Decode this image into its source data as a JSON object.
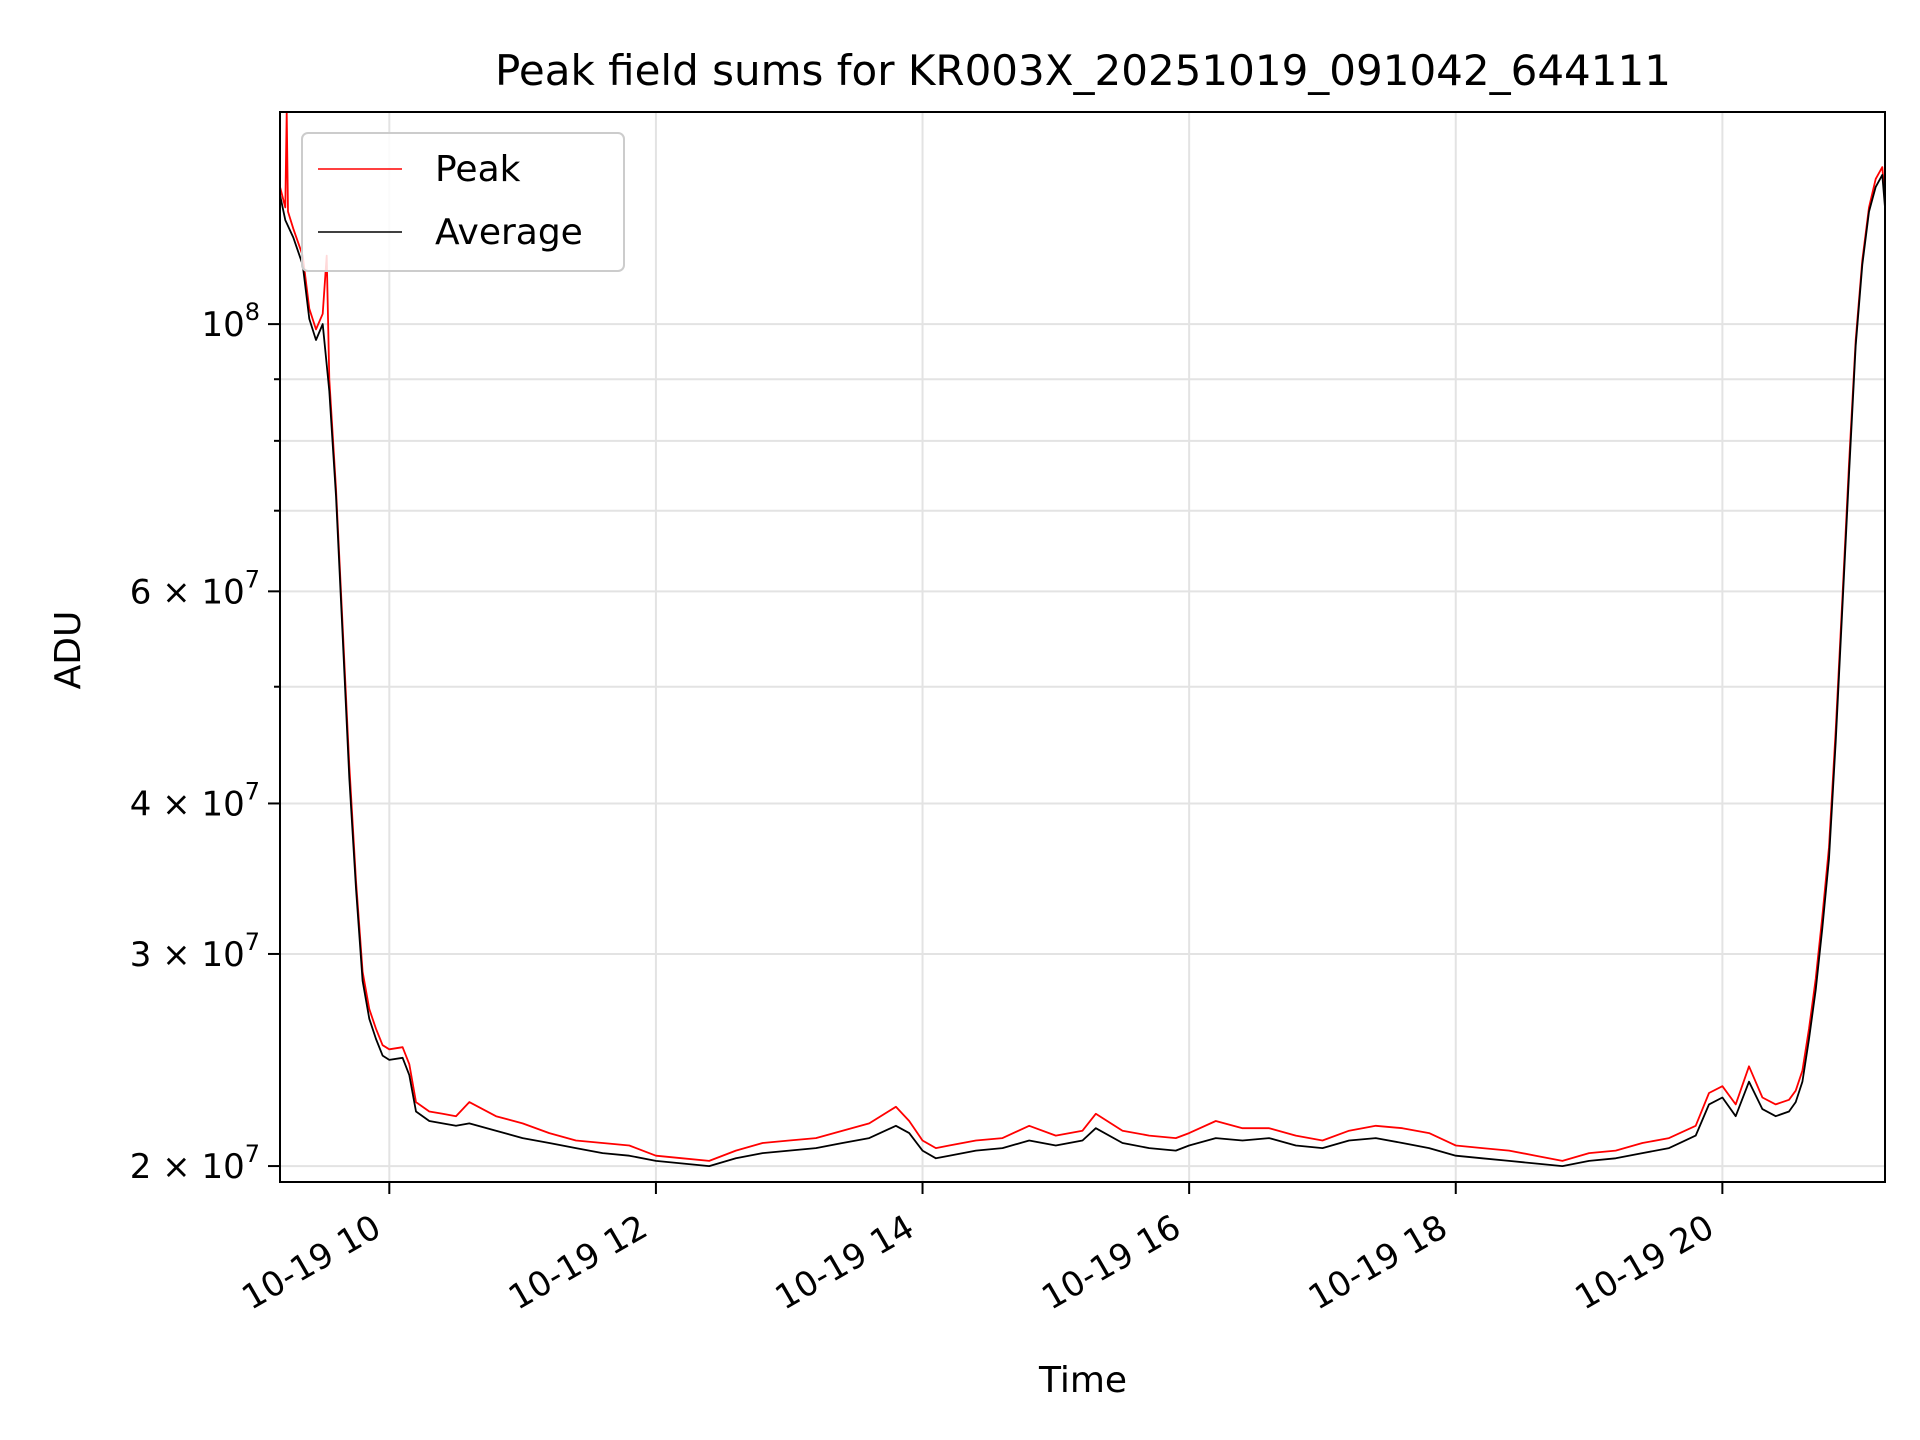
{
  "chart_data": {
    "type": "line",
    "title": "Peak field sums for KR003X_20251019_091042_644111",
    "xlabel": "Time",
    "ylabel": "ADU",
    "yscale": "log",
    "xlim_hours": [
      9.18,
      21.22
    ],
    "ylim": [
      19400000,
      150000000
    ],
    "x_ticks": [
      {
        "value": 10,
        "label": "10-19 10"
      },
      {
        "value": 12,
        "label": "10-19 12"
      },
      {
        "value": 14,
        "label": "10-19 14"
      },
      {
        "value": 16,
        "label": "10-19 16"
      },
      {
        "value": 18,
        "label": "10-19 18"
      },
      {
        "value": 20,
        "label": "10-19 20"
      }
    ],
    "y_major_ticks": [
      {
        "value": 100000000,
        "mantissa": "",
        "base": "10",
        "exp": "8"
      },
      {
        "value": 60000000,
        "mantissa": "6 × ",
        "base": "10",
        "exp": "7"
      },
      {
        "value": 40000000,
        "mantissa": "4 × ",
        "base": "10",
        "exp": "7"
      },
      {
        "value": 30000000,
        "mantissa": "3 × ",
        "base": "10",
        "exp": "7"
      },
      {
        "value": 20000000,
        "mantissa": "2 × ",
        "base": "10",
        "exp": "7"
      }
    ],
    "y_minor_ticks": [
      50000000,
      70000000,
      80000000,
      90000000
    ],
    "grid": true,
    "legend_position": "top-left",
    "series": [
      {
        "name": "Average",
        "color": "#000000",
        "points": [
          [
            9.18,
            128000000
          ],
          [
            9.22,
            122000000
          ],
          [
            9.28,
            118000000
          ],
          [
            9.35,
            112000000
          ],
          [
            9.4,
            101000000
          ],
          [
            9.45,
            97000000
          ],
          [
            9.5,
            100000000
          ],
          [
            9.55,
            88000000
          ],
          [
            9.6,
            72000000
          ],
          [
            9.65,
            55000000
          ],
          [
            9.7,
            42000000
          ],
          [
            9.75,
            34000000
          ],
          [
            9.8,
            28500000
          ],
          [
            9.85,
            26500000
          ],
          [
            9.9,
            25500000
          ],
          [
            9.95,
            24700000
          ],
          [
            10.0,
            24500000
          ],
          [
            10.1,
            24600000
          ],
          [
            10.15,
            23800000
          ],
          [
            10.2,
            22200000
          ],
          [
            10.3,
            21800000
          ],
          [
            10.4,
            21700000
          ],
          [
            10.5,
            21600000
          ],
          [
            10.6,
            21700000
          ],
          [
            10.8,
            21400000
          ],
          [
            11.0,
            21100000
          ],
          [
            11.2,
            20900000
          ],
          [
            11.4,
            20700000
          ],
          [
            11.6,
            20500000
          ],
          [
            11.8,
            20400000
          ],
          [
            12.0,
            20200000
          ],
          [
            12.2,
            20100000
          ],
          [
            12.4,
            20000000
          ],
          [
            12.6,
            20300000
          ],
          [
            12.8,
            20500000
          ],
          [
            13.0,
            20600000
          ],
          [
            13.2,
            20700000
          ],
          [
            13.4,
            20900000
          ],
          [
            13.6,
            21100000
          ],
          [
            13.8,
            21600000
          ],
          [
            13.9,
            21300000
          ],
          [
            14.0,
            20600000
          ],
          [
            14.1,
            20300000
          ],
          [
            14.2,
            20400000
          ],
          [
            14.4,
            20600000
          ],
          [
            14.6,
            20700000
          ],
          [
            14.8,
            21000000
          ],
          [
            15.0,
            20800000
          ],
          [
            15.2,
            21000000
          ],
          [
            15.3,
            21500000
          ],
          [
            15.5,
            20900000
          ],
          [
            15.7,
            20700000
          ],
          [
            15.9,
            20600000
          ],
          [
            16.0,
            20800000
          ],
          [
            16.2,
            21100000
          ],
          [
            16.4,
            21000000
          ],
          [
            16.6,
            21100000
          ],
          [
            16.8,
            20800000
          ],
          [
            17.0,
            20700000
          ],
          [
            17.2,
            21000000
          ],
          [
            17.4,
            21100000
          ],
          [
            17.6,
            20900000
          ],
          [
            17.8,
            20700000
          ],
          [
            18.0,
            20400000
          ],
          [
            18.2,
            20300000
          ],
          [
            18.4,
            20200000
          ],
          [
            18.6,
            20100000
          ],
          [
            18.8,
            20000000
          ],
          [
            19.0,
            20200000
          ],
          [
            19.2,
            20300000
          ],
          [
            19.4,
            20500000
          ],
          [
            19.6,
            20700000
          ],
          [
            19.8,
            21200000
          ],
          [
            19.9,
            22500000
          ],
          [
            20.0,
            22800000
          ],
          [
            20.1,
            22000000
          ],
          [
            20.2,
            23500000
          ],
          [
            20.3,
            22300000
          ],
          [
            20.4,
            22000000
          ],
          [
            20.5,
            22200000
          ],
          [
            20.55,
            22600000
          ],
          [
            20.6,
            23500000
          ],
          [
            20.65,
            25500000
          ],
          [
            20.7,
            28000000
          ],
          [
            20.75,
            31500000
          ],
          [
            20.8,
            36000000
          ],
          [
            20.85,
            45000000
          ],
          [
            20.9,
            58000000
          ],
          [
            20.95,
            75000000
          ],
          [
            21.0,
            96000000
          ],
          [
            21.05,
            112000000
          ],
          [
            21.1,
            124000000
          ],
          [
            21.15,
            130000000
          ],
          [
            21.2,
            133000000
          ],
          [
            21.22,
            125000000
          ]
        ]
      },
      {
        "name": "Peak",
        "color": "#ff0000",
        "points": [
          [
            9.18,
            130000000
          ],
          [
            9.22,
            125000000
          ],
          [
            9.23,
            150000000
          ],
          [
            9.24,
            124000000
          ],
          [
            9.28,
            120000000
          ],
          [
            9.35,
            114000000
          ],
          [
            9.4,
            103000000
          ],
          [
            9.45,
            99000000
          ],
          [
            9.5,
            102000000
          ],
          [
            9.53,
            114000000
          ],
          [
            9.55,
            90000000
          ],
          [
            9.6,
            73000000
          ],
          [
            9.65,
            56000000
          ],
          [
            9.7,
            43000000
          ],
          [
            9.75,
            34500000
          ],
          [
            9.8,
            29000000
          ],
          [
            9.85,
            27000000
          ],
          [
            9.9,
            26000000
          ],
          [
            9.95,
            25200000
          ],
          [
            10.0,
            25000000
          ],
          [
            10.1,
            25100000
          ],
          [
            10.15,
            24300000
          ],
          [
            10.2,
            22600000
          ],
          [
            10.3,
            22200000
          ],
          [
            10.4,
            22100000
          ],
          [
            10.5,
            22000000
          ],
          [
            10.6,
            22600000
          ],
          [
            10.8,
            22000000
          ],
          [
            11.0,
            21700000
          ],
          [
            11.2,
            21300000
          ],
          [
            11.4,
            21000000
          ],
          [
            11.6,
            20900000
          ],
          [
            11.8,
            20800000
          ],
          [
            12.0,
            20400000
          ],
          [
            12.2,
            20300000
          ],
          [
            12.4,
            20200000
          ],
          [
            12.6,
            20600000
          ],
          [
            12.8,
            20900000
          ],
          [
            13.0,
            21000000
          ],
          [
            13.2,
            21100000
          ],
          [
            13.4,
            21400000
          ],
          [
            13.6,
            21700000
          ],
          [
            13.8,
            22400000
          ],
          [
            13.9,
            21800000
          ],
          [
            14.0,
            21000000
          ],
          [
            14.1,
            20700000
          ],
          [
            14.2,
            20800000
          ],
          [
            14.4,
            21000000
          ],
          [
            14.6,
            21100000
          ],
          [
            14.8,
            21600000
          ],
          [
            15.0,
            21200000
          ],
          [
            15.2,
            21400000
          ],
          [
            15.3,
            22100000
          ],
          [
            15.5,
            21400000
          ],
          [
            15.7,
            21200000
          ],
          [
            15.9,
            21100000
          ],
          [
            16.0,
            21300000
          ],
          [
            16.2,
            21800000
          ],
          [
            16.4,
            21500000
          ],
          [
            16.6,
            21500000
          ],
          [
            16.8,
            21200000
          ],
          [
            17.0,
            21000000
          ],
          [
            17.2,
            21400000
          ],
          [
            17.4,
            21600000
          ],
          [
            17.6,
            21500000
          ],
          [
            17.8,
            21300000
          ],
          [
            18.0,
            20800000
          ],
          [
            18.2,
            20700000
          ],
          [
            18.4,
            20600000
          ],
          [
            18.6,
            20400000
          ],
          [
            18.8,
            20200000
          ],
          [
            19.0,
            20500000
          ],
          [
            19.2,
            20600000
          ],
          [
            19.4,
            20900000
          ],
          [
            19.6,
            21100000
          ],
          [
            19.8,
            21600000
          ],
          [
            19.9,
            23000000
          ],
          [
            20.0,
            23300000
          ],
          [
            20.1,
            22500000
          ],
          [
            20.2,
            24200000
          ],
          [
            20.3,
            22800000
          ],
          [
            20.4,
            22500000
          ],
          [
            20.5,
            22700000
          ],
          [
            20.55,
            23100000
          ],
          [
            20.6,
            24000000
          ],
          [
            20.65,
            26000000
          ],
          [
            20.7,
            28600000
          ],
          [
            20.75,
            32200000
          ],
          [
            20.8,
            36800000
          ],
          [
            20.85,
            46000000
          ],
          [
            20.9,
            59000000
          ],
          [
            20.95,
            76500000
          ],
          [
            21.0,
            97000000
          ],
          [
            21.05,
            113000000
          ],
          [
            21.1,
            125000000
          ],
          [
            21.15,
            132000000
          ],
          [
            21.2,
            135000000
          ],
          [
            21.22,
            127000000
          ]
        ]
      }
    ]
  },
  "legend": {
    "items": [
      {
        "name": "Peak",
        "color": "#ff0000"
      },
      {
        "name": "Average",
        "color": "#000000"
      }
    ]
  }
}
